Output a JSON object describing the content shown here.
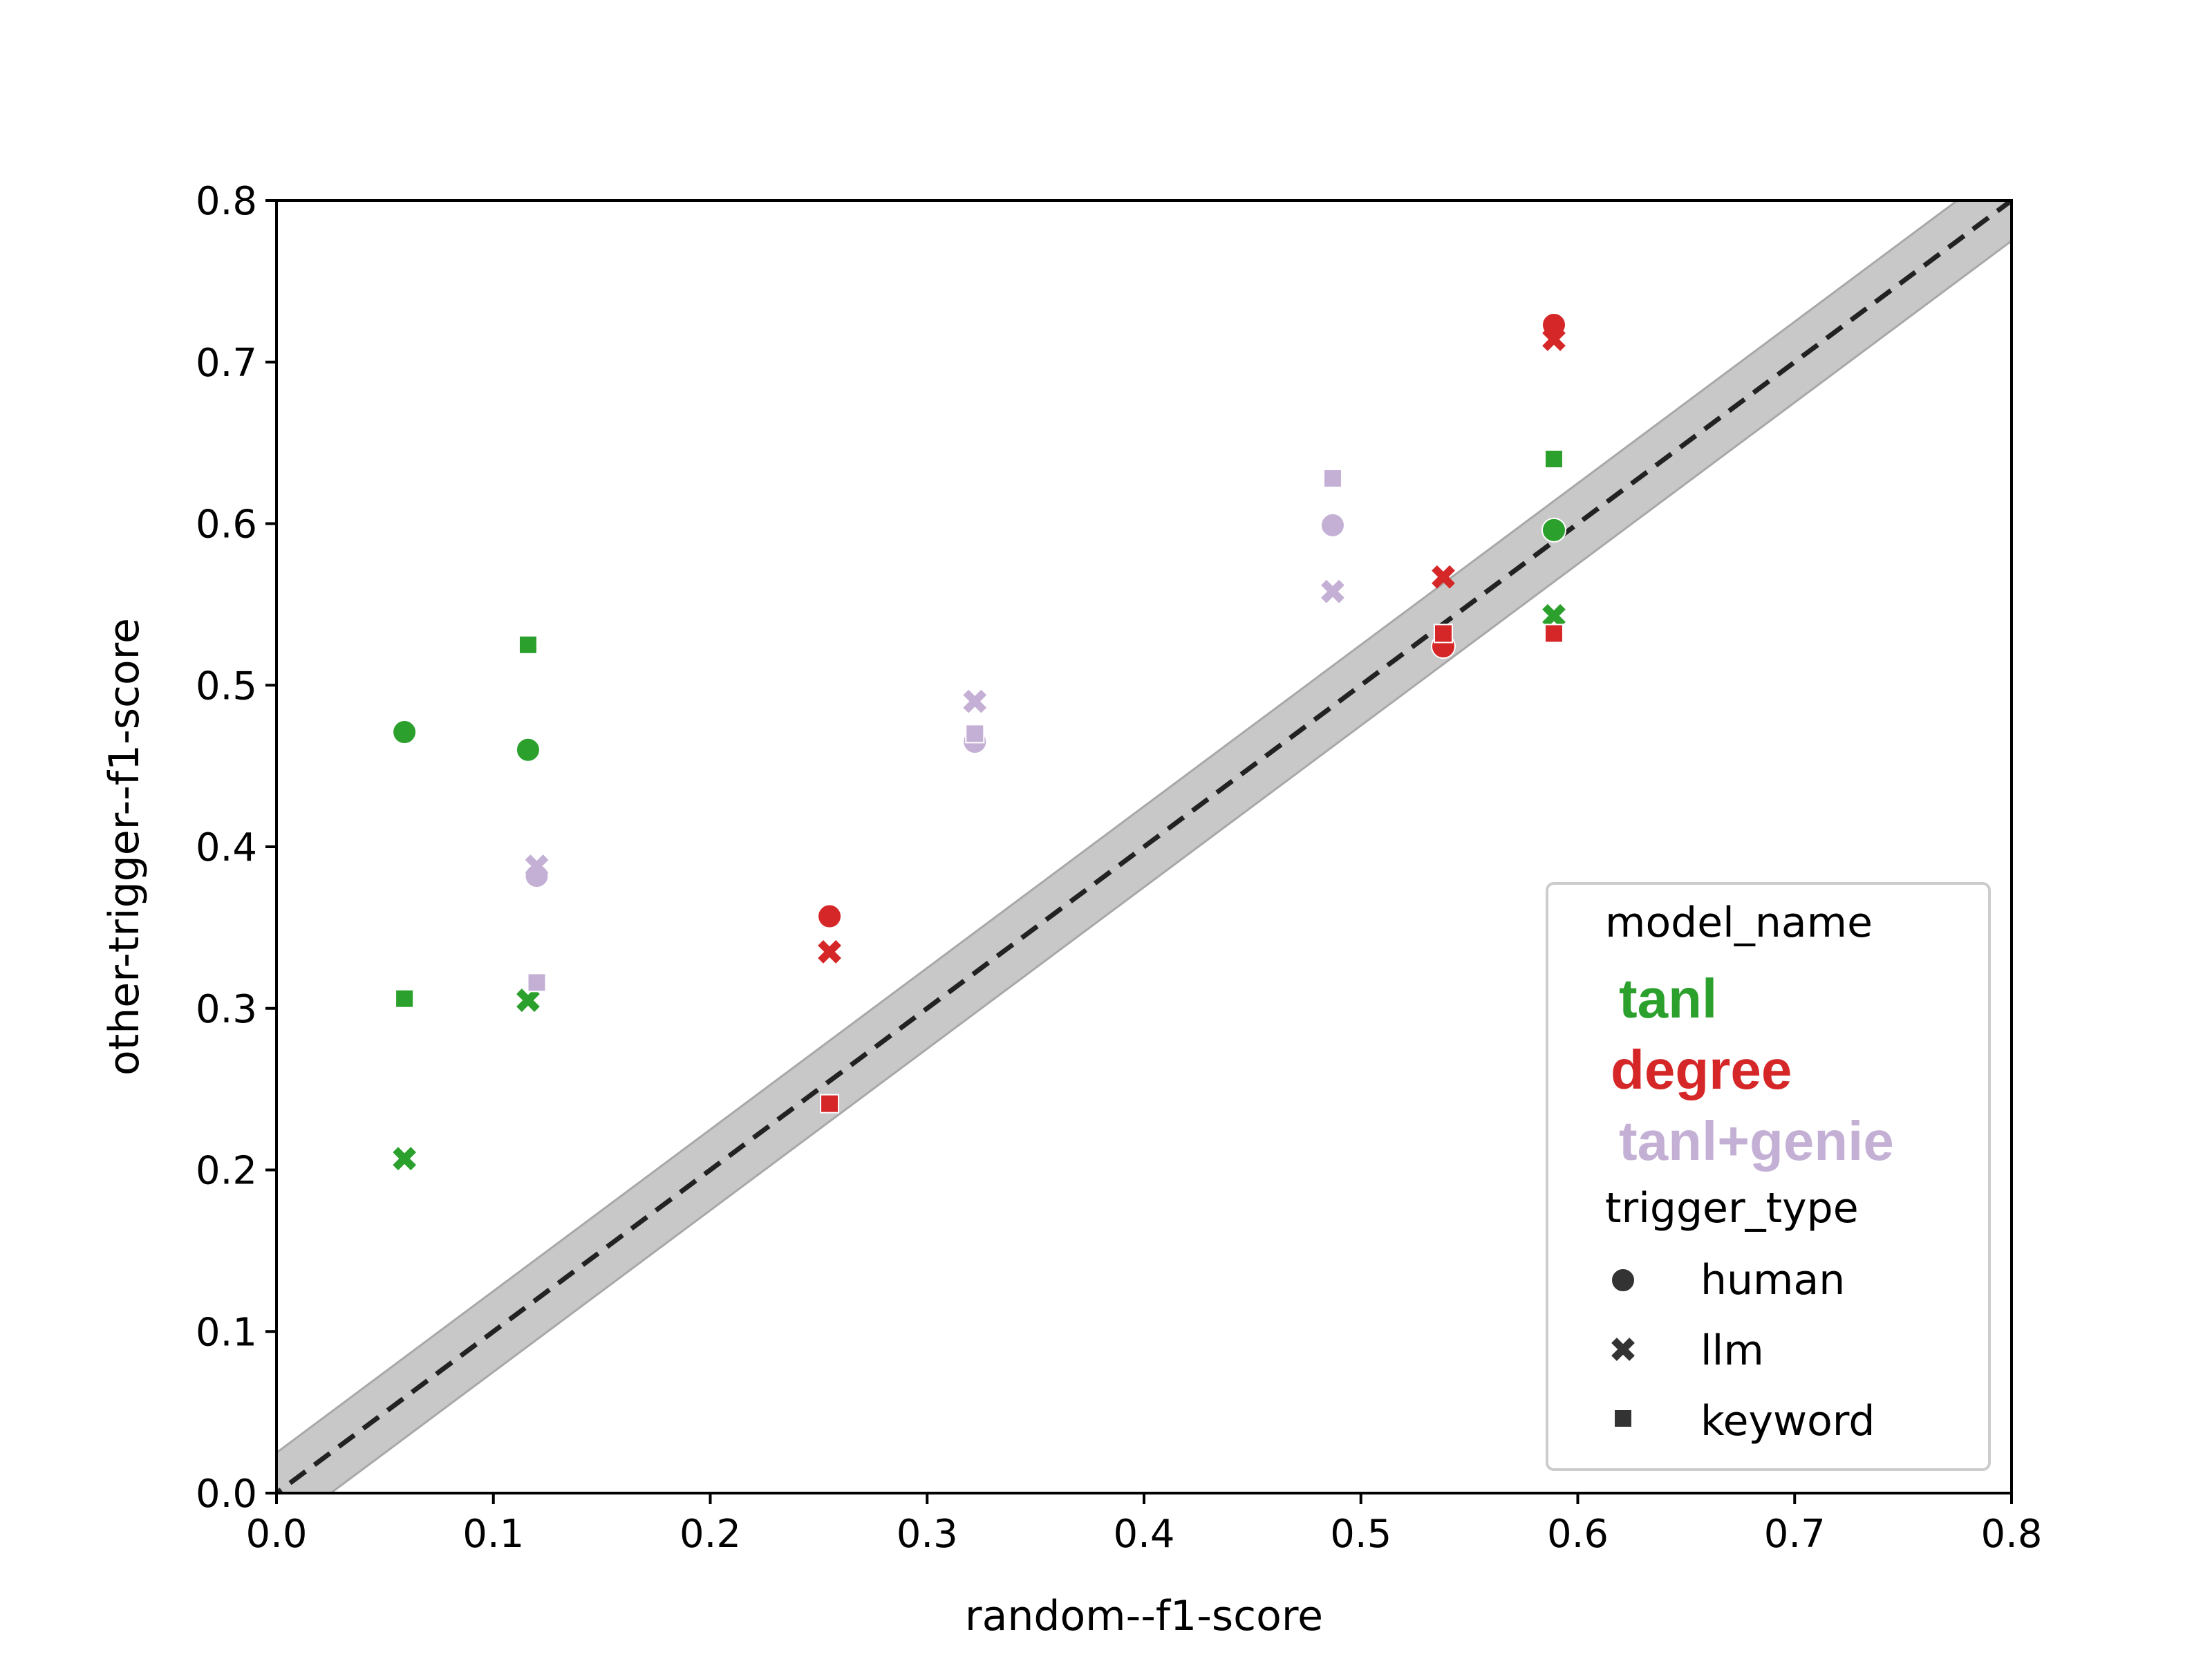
{
  "chart_data": {
    "type": "scatter",
    "xlabel": "random--f1-score",
    "ylabel": "other-trigger--f1-score",
    "xlim": [
      0.0,
      0.8
    ],
    "ylim": [
      0.0,
      0.8
    ],
    "xticks": [
      "0.0",
      "0.1",
      "0.2",
      "0.3",
      "0.4",
      "0.5",
      "0.6",
      "0.7",
      "0.8"
    ],
    "yticks": [
      "0.0",
      "0.1",
      "0.2",
      "0.3",
      "0.4",
      "0.5",
      "0.6",
      "0.7",
      "0.8"
    ],
    "reference_line": {
      "style": "dashed",
      "slope": 1,
      "intercept": 0,
      "band_halfwidth": 0.025
    },
    "legend": {
      "location": "lower-right",
      "model_title": "model_name",
      "trigger_title": "trigger_type",
      "models": [
        {
          "name": "tanl",
          "color": "#2ca02c"
        },
        {
          "name": "degree",
          "color": "#d62728"
        },
        {
          "name": "tanl+genie",
          "color": "#c5b0d5"
        }
      ],
      "triggers": [
        {
          "name": "human",
          "marker": "circle"
        },
        {
          "name": "llm",
          "marker": "x"
        },
        {
          "name": "keyword",
          "marker": "square"
        }
      ],
      "marker_color": "#333333"
    },
    "series": [
      {
        "model": "tanl",
        "color": "#2ca02c",
        "points": [
          {
            "x": 0.059,
            "y": 0.471,
            "trigger": "human"
          },
          {
            "x": 0.059,
            "y": 0.207,
            "trigger": "llm"
          },
          {
            "x": 0.059,
            "y": 0.306,
            "trigger": "keyword"
          },
          {
            "x": 0.116,
            "y": 0.46,
            "trigger": "human"
          },
          {
            "x": 0.116,
            "y": 0.305,
            "trigger": "llm"
          },
          {
            "x": 0.116,
            "y": 0.525,
            "trigger": "keyword"
          },
          {
            "x": 0.589,
            "y": 0.596,
            "trigger": "human"
          },
          {
            "x": 0.589,
            "y": 0.543,
            "trigger": "llm"
          },
          {
            "x": 0.589,
            "y": 0.64,
            "trigger": "keyword"
          }
        ]
      },
      {
        "model": "degree",
        "color": "#d62728",
        "points": [
          {
            "x": 0.255,
            "y": 0.357,
            "trigger": "human"
          },
          {
            "x": 0.255,
            "y": 0.335,
            "trigger": "llm"
          },
          {
            "x": 0.255,
            "y": 0.241,
            "trigger": "keyword"
          },
          {
            "x": 0.538,
            "y": 0.524,
            "trigger": "human"
          },
          {
            "x": 0.538,
            "y": 0.567,
            "trigger": "llm"
          },
          {
            "x": 0.538,
            "y": 0.532,
            "trigger": "keyword"
          },
          {
            "x": 0.589,
            "y": 0.723,
            "trigger": "human"
          },
          {
            "x": 0.589,
            "y": 0.714,
            "trigger": "llm"
          },
          {
            "x": 0.589,
            "y": 0.532,
            "trigger": "keyword"
          }
        ]
      },
      {
        "model": "tanl+genie",
        "color": "#c5b0d5",
        "points": [
          {
            "x": 0.12,
            "y": 0.382,
            "trigger": "human"
          },
          {
            "x": 0.12,
            "y": 0.388,
            "trigger": "llm"
          },
          {
            "x": 0.12,
            "y": 0.316,
            "trigger": "keyword"
          },
          {
            "x": 0.322,
            "y": 0.465,
            "trigger": "human"
          },
          {
            "x": 0.322,
            "y": 0.49,
            "trigger": "llm"
          },
          {
            "x": 0.322,
            "y": 0.47,
            "trigger": "keyword"
          },
          {
            "x": 0.487,
            "y": 0.599,
            "trigger": "human"
          },
          {
            "x": 0.487,
            "y": 0.558,
            "trigger": "llm"
          },
          {
            "x": 0.487,
            "y": 0.628,
            "trigger": "keyword"
          }
        ]
      }
    ]
  }
}
